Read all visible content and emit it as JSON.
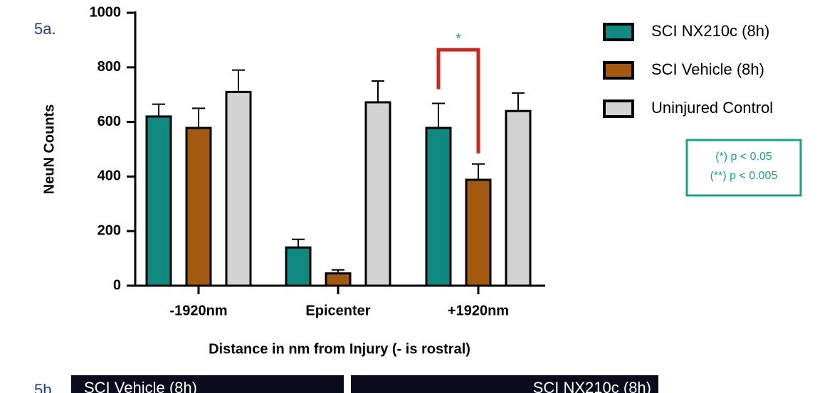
{
  "chart_data": {
    "type": "bar",
    "y_label": "NeuN Counts",
    "x_label": "Distance in nm from Injury (- is rostral)",
    "categories": [
      "-1920nm",
      "Epicenter",
      "+1920nm"
    ],
    "series": [
      {
        "name": "SCI NX210c (8h)",
        "color": "#0f8a80",
        "values": [
          620,
          140,
          578
        ],
        "errors": [
          45,
          30,
          90
        ]
      },
      {
        "name": "SCI Vehicle (8h)",
        "color": "#a35a0e",
        "values": [
          578,
          45,
          388
        ],
        "errors": [
          72,
          13,
          58
        ]
      },
      {
        "name": "Uninjured Control",
        "color": "#d3d3d3",
        "values": [
          710,
          672,
          640
        ],
        "errors": [
          80,
          78,
          66
        ]
      }
    ],
    "ylim": [
      0,
      1000
    ],
    "yticks": [
      0,
      200,
      400,
      600,
      800,
      1000
    ],
    "annotation": "*",
    "significance_legend": [
      "(*) p < 0.05",
      "(**) p < 0.005"
    ]
  },
  "figure": {
    "label_a": "5a.",
    "label_b": "5b.",
    "panel_b_titles": [
      "SCI Vehicle (8h)",
      "SCI NX210c (8h)"
    ]
  }
}
